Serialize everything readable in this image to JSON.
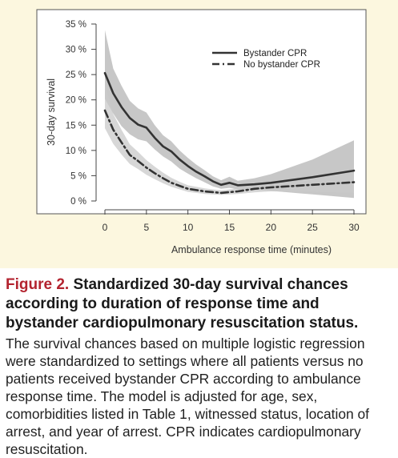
{
  "chart_data": {
    "type": "line",
    "xlabel": "Ambulance response time (minutes)",
    "ylabel": "30-day survival",
    "xlim": [
      0,
      30
    ],
    "ylim": [
      0,
      35
    ],
    "x_ticks": [
      "0",
      "5",
      "10",
      "15",
      "20",
      "25",
      "30"
    ],
    "y_ticks": [
      "0 %",
      "5 %",
      "10 %",
      "15 %",
      "20 %",
      "25 %",
      "30 %",
      "35 %"
    ],
    "legend_position": "top-right",
    "grid": false,
    "series": [
      {
        "name": "Bystander CPR",
        "style": "solid",
        "color": "#333333",
        "band_color": "#b4b4b4",
        "x": [
          0,
          1,
          2,
          3,
          4,
          5,
          6,
          7,
          8,
          9,
          10,
          11,
          12,
          13,
          14,
          15,
          16,
          18,
          20,
          25,
          30
        ],
        "y": [
          25.3,
          21.3,
          18.6,
          16.4,
          15.1,
          14.5,
          12.5,
          10.8,
          9.8,
          8.2,
          6.9,
          5.8,
          4.9,
          3.9,
          3.2,
          3.6,
          3.1,
          3.3,
          3.6,
          4.7,
          6.0
        ],
        "lower": [
          20.2,
          17.3,
          14.8,
          13.2,
          12.2,
          11.8,
          10.2,
          8.8,
          7.8,
          6.4,
          5.4,
          4.5,
          3.7,
          2.9,
          2.4,
          2.6,
          2.3,
          2.2,
          2.0,
          1.3,
          0.6
        ],
        "upper": [
          33.8,
          26.2,
          22.8,
          19.8,
          18.3,
          17.5,
          15.0,
          13.0,
          11.8,
          10.0,
          8.5,
          7.2,
          6.1,
          4.9,
          4.1,
          4.8,
          4.0,
          4.5,
          5.3,
          8.2,
          12.0
        ]
      },
      {
        "name": "No bystander CPR",
        "style": "dashdot",
        "color": "#333333",
        "band_color": "#c9c9c9",
        "x": [
          0,
          1,
          2,
          3,
          4,
          5,
          6,
          7,
          8,
          9,
          10,
          12,
          14,
          16,
          18,
          20,
          25,
          30
        ],
        "y": [
          17.9,
          14.1,
          11.6,
          9.1,
          7.9,
          6.6,
          5.5,
          4.5,
          3.6,
          3.0,
          2.4,
          1.9,
          1.6,
          1.9,
          2.4,
          2.7,
          3.2,
          3.7
        ],
        "lower": [
          14.4,
          11.3,
          9.2,
          7.3,
          6.3,
          5.2,
          4.3,
          3.5,
          2.8,
          2.3,
          1.8,
          1.4,
          1.2,
          1.4,
          1.7,
          1.9,
          1.8,
          1.6
        ],
        "upper": [
          23.0,
          17.2,
          14.1,
          11.2,
          9.7,
          8.1,
          6.8,
          5.6,
          4.6,
          3.8,
          3.1,
          2.5,
          2.1,
          2.5,
          3.1,
          3.6,
          4.7,
          6.0
        ]
      }
    ]
  },
  "caption": {
    "figure_label": "Figure 2.",
    "title": "Standardized 30-day survival chances according to duration of response time and bystander cardiopulmonary resuscitation status.",
    "body": "The survival chances based on multiple logistic regression were standardized to settings where all patients versus no patients received bystander CPR according to ambulance response time. The model is adjusted for age, sex, comorbidities listed in Table 1, witnessed status, location of arrest, and year of arrest. CPR indicates cardiopulmonary resuscitation."
  }
}
